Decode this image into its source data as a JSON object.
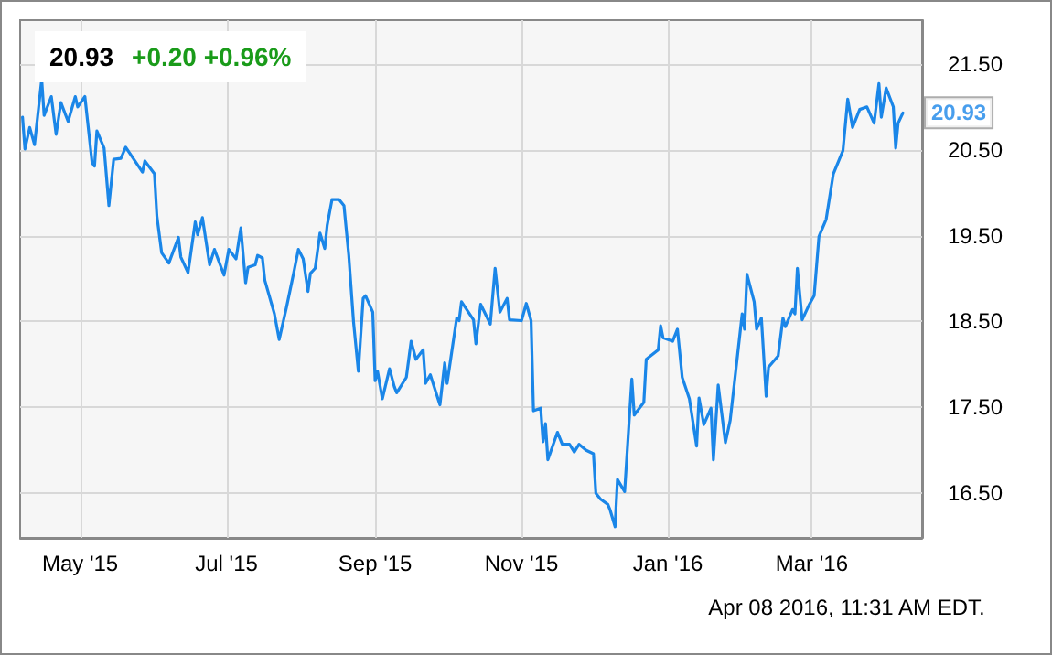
{
  "chart_data": {
    "type": "line",
    "title": "20.93",
    "subtitle": "+0.20 +0.96%",
    "annotations": [
      {
        "text": "20.93",
        "x": "2016-04-08",
        "y": 20.93
      },
      "Apr 08 2016, 11:31 AM EDT."
    ],
    "xlim": [
      "2015-04-06",
      "2016-04-16"
    ],
    "xticks": [
      {
        "value": "2015-05-01",
        "label": "May '15"
      },
      {
        "value": "2015-07-01",
        "label": "Jul '15"
      },
      {
        "value": "2015-09-01",
        "label": "Sep '15"
      },
      {
        "value": "2015-11-01",
        "label": "Nov '15"
      },
      {
        "value": "2016-01-01",
        "label": "Jan '16"
      },
      {
        "value": "2016-03-01",
        "label": "Mar '16"
      }
    ],
    "ylim": [
      15.98,
      22.01
    ],
    "yticks": [
      {
        "value": 16.5,
        "label": "16.50"
      },
      {
        "value": 17.5,
        "label": "17.50"
      },
      {
        "value": 18.5,
        "label": "18.50"
      },
      {
        "value": 19.5,
        "label": "19.50"
      },
      {
        "value": 20.5,
        "label": "20.50"
      },
      {
        "value": 21.5,
        "label": "21.50"
      }
    ],
    "grid": true,
    "marker": "none",
    "line_style": "solid",
    "series": [
      {
        "color": "#1a86e8",
        "x": [
          "2015-04-07",
          "2015-04-08",
          "2015-04-10",
          "2015-04-12",
          "2015-04-15",
          "2015-04-16",
          "2015-04-19",
          "2015-04-21",
          "2015-04-23",
          "2015-04-26",
          "2015-04-29",
          "2015-04-30",
          "2015-05-03",
          "2015-05-06",
          "2015-05-07",
          "2015-05-08",
          "2015-05-11",
          "2015-05-13",
          "2015-05-15",
          "2015-05-18",
          "2015-05-20",
          "2015-05-27",
          "2015-05-28",
          "2015-06-01",
          "2015-06-02",
          "2015-06-04",
          "2015-06-07",
          "2015-06-11",
          "2015-06-12",
          "2015-06-15",
          "2015-06-18",
          "2015-06-19",
          "2015-06-21",
          "2015-06-24",
          "2015-06-26",
          "2015-06-30",
          "2015-07-02",
          "2015-07-05",
          "2015-07-07",
          "2015-07-09",
          "2015-07-10",
          "2015-07-13",
          "2015-07-14",
          "2015-07-16",
          "2015-07-17",
          "2015-07-21",
          "2015-07-23",
          "2015-07-26",
          "2015-07-29",
          "2015-07-31",
          "2015-08-02",
          "2015-08-04",
          "2015-08-05",
          "2015-08-07",
          "2015-08-09",
          "2015-08-11",
          "2015-08-12",
          "2015-08-14",
          "2015-08-17",
          "2015-08-19",
          "2015-08-21",
          "2015-08-23",
          "2015-08-25",
          "2015-08-27",
          "2015-08-28",
          "2015-08-31",
          "2015-09-01",
          "2015-09-02",
          "2015-09-04",
          "2015-09-07",
          "2015-09-09",
          "2015-09-10",
          "2015-09-14",
          "2015-09-16",
          "2015-09-18",
          "2015-09-21",
          "2015-09-22",
          "2015-09-24",
          "2015-09-28",
          "2015-09-30",
          "2015-10-01",
          "2015-10-05",
          "2015-10-06",
          "2015-10-07",
          "2015-10-12",
          "2015-10-13",
          "2015-10-15",
          "2015-10-19",
          "2015-10-21",
          "2015-10-23",
          "2015-10-26",
          "2015-10-27",
          "2015-11-01",
          "2015-11-03",
          "2015-11-05",
          "2015-11-06",
          "2015-11-09",
          "2015-11-10",
          "2015-11-11",
          "2015-11-12",
          "2015-11-16",
          "2015-11-18",
          "2015-11-21",
          "2015-11-23",
          "2015-11-25",
          "2015-11-28",
          "2015-12-01",
          "2015-12-02",
          "2015-12-04",
          "2015-12-07",
          "2015-12-08",
          "2015-12-10",
          "2015-12-11",
          "2015-12-14",
          "2015-12-17",
          "2015-12-18",
          "2015-12-22",
          "2015-12-23",
          "2015-12-28",
          "2015-12-29",
          "2015-12-30",
          "2016-01-03",
          "2016-01-05",
          "2016-01-07",
          "2016-01-10",
          "2016-01-13",
          "2016-01-14",
          "2016-01-16",
          "2016-01-19",
          "2016-01-20",
          "2016-01-22",
          "2016-01-25",
          "2016-01-27",
          "2016-02-01",
          "2016-02-02",
          "2016-02-03",
          "2016-02-06",
          "2016-02-07",
          "2016-02-09",
          "2016-02-11",
          "2016-02-12",
          "2016-02-16",
          "2016-02-18",
          "2016-02-19",
          "2016-02-22",
          "2016-02-23",
          "2016-02-24",
          "2016-02-26",
          "2016-02-29",
          "2016-03-02",
          "2016-03-04",
          "2016-03-07",
          "2016-03-10",
          "2016-03-14",
          "2016-03-16",
          "2016-03-18",
          "2016-03-21",
          "2016-03-24",
          "2016-03-27",
          "2016-03-29",
          "2016-03-30",
          "2016-04-01",
          "2016-04-04",
          "2016-04-05",
          "2016-04-06",
          "2016-04-08"
        ],
        "values": [
          20.88,
          20.51,
          20.76,
          20.56,
          21.32,
          20.9,
          21.12,
          20.68,
          21.05,
          20.83,
          21.12,
          21.0,
          21.12,
          20.35,
          20.31,
          20.72,
          20.52,
          19.85,
          20.39,
          20.4,
          20.53,
          20.24,
          20.37,
          20.22,
          19.73,
          19.3,
          19.18,
          19.48,
          19.25,
          19.07,
          19.66,
          19.51,
          19.71,
          19.16,
          19.34,
          19.04,
          19.34,
          19.23,
          19.59,
          18.95,
          19.13,
          19.16,
          19.27,
          19.24,
          18.98,
          18.59,
          18.29,
          18.66,
          19.06,
          19.34,
          19.23,
          18.85,
          19.06,
          19.12,
          19.53,
          19.35,
          19.62,
          19.92,
          19.92,
          19.85,
          19.27,
          18.49,
          17.92,
          18.77,
          18.8,
          18.61,
          17.81,
          17.92,
          17.6,
          17.95,
          17.74,
          17.67,
          17.85,
          18.27,
          18.06,
          18.17,
          17.78,
          17.88,
          17.53,
          18.02,
          17.78,
          18.54,
          18.51,
          18.73,
          18.52,
          18.24,
          18.7,
          18.47,
          19.12,
          18.61,
          18.77,
          18.52,
          18.51,
          18.71,
          18.51,
          17.46,
          17.49,
          17.1,
          17.31,
          16.89,
          17.21,
          17.07,
          17.07,
          16.98,
          17.07,
          17.0,
          16.96,
          16.5,
          16.43,
          16.37,
          16.3,
          16.11,
          16.66,
          16.52,
          17.83,
          17.41,
          17.56,
          18.06,
          18.17,
          18.45,
          18.31,
          18.27,
          18.41,
          17.85,
          17.6,
          17.05,
          17.61,
          17.3,
          17.49,
          16.89,
          17.76,
          17.09,
          17.35,
          18.59,
          18.41,
          19.05,
          18.73,
          18.41,
          18.54,
          17.63,
          17.97,
          18.1,
          18.54,
          18.44,
          18.64,
          18.59,
          19.12,
          18.52,
          18.7,
          18.8,
          19.49,
          19.69,
          20.22,
          20.49,
          21.09,
          20.76,
          20.97,
          21.0,
          20.81,
          21.27,
          20.88,
          21.22,
          21.0,
          20.52,
          20.81,
          20.93
        ]
      }
    ]
  }
}
